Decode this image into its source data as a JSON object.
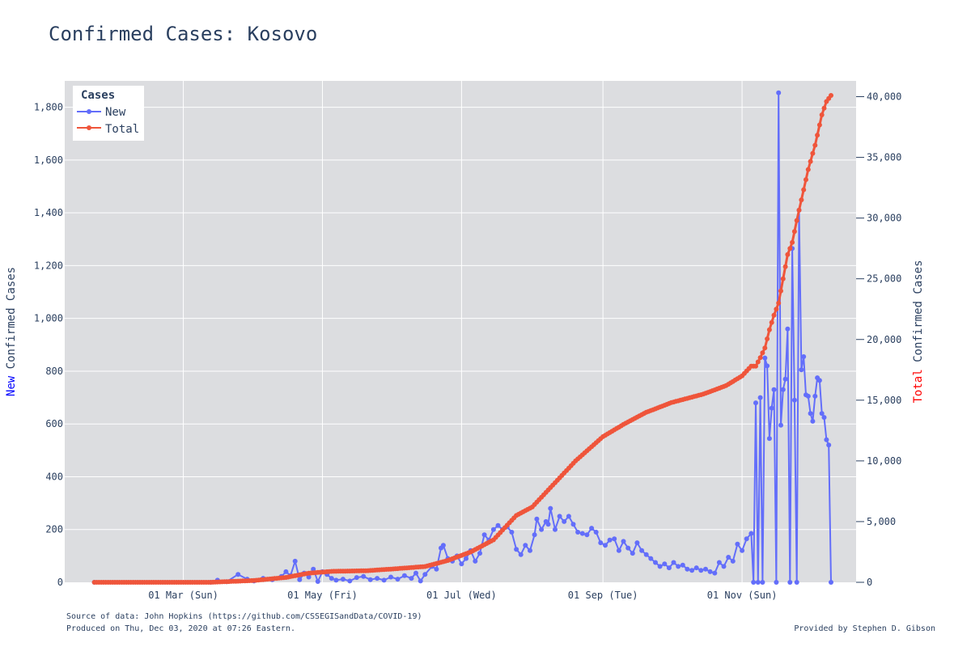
{
  "chart_data": {
    "type": "line",
    "title": "Confirmed Cases: Kosovo",
    "y_left_label": {
      "prefix": "New",
      "rest": " Confirmed Cases"
    },
    "y_right_label": {
      "prefix": "Total",
      "rest": " Confirmed Cases"
    },
    "x_tick_labels": [
      "01 Mar (Sun)",
      "01 May (Fri)",
      "01 Jul (Wed)",
      "01 Sep (Tue)",
      "01 Nov (Sun)"
    ],
    "x_tick_dates": [
      "2020-03-01",
      "2020-05-01",
      "2020-07-01",
      "2020-09-01",
      "2020-11-01"
    ],
    "x_range": [
      "2020-01-09",
      "2020-12-21"
    ],
    "y_left_range": [
      0,
      1900
    ],
    "y_left_ticks": [
      0,
      200,
      400,
      600,
      800,
      1000,
      1200,
      1400,
      1600,
      1800
    ],
    "y_left_tick_labels": [
      "0",
      "200",
      "400",
      "600",
      "800",
      "1,000",
      "1,200",
      "1,400",
      "1,600",
      "1,800"
    ],
    "y_right_range": [
      0,
      41300
    ],
    "y_right_ticks": [
      0,
      5000,
      10000,
      15000,
      20000,
      25000,
      30000,
      35000,
      40000
    ],
    "y_right_tick_labels": [
      "0",
      "5,000",
      "10,000",
      "15,000",
      "20,000",
      "25,000",
      "30,000",
      "35,000",
      "40,000"
    ],
    "legend": {
      "title": "Cases",
      "position": "top-left"
    },
    "grid": true,
    "colors": {
      "new": "#636efa",
      "total": "#ef553b",
      "plot_bg": "#dcdde0",
      "grid": "#ffffff",
      "new_label": "#0000ff",
      "total_label": "#ff0000"
    },
    "series": [
      {
        "name": "New",
        "axis": "left",
        "color": "#636efa",
        "points": [
          [
            "2020-01-22",
            0
          ],
          [
            "2020-03-13",
            0
          ],
          [
            "2020-03-16",
            8
          ],
          [
            "2020-03-20",
            2
          ],
          [
            "2020-03-25",
            30
          ],
          [
            "2020-03-29",
            12
          ],
          [
            "2020-04-01",
            5
          ],
          [
            "2020-04-05",
            15
          ],
          [
            "2020-04-09",
            10
          ],
          [
            "2020-04-13",
            22
          ],
          [
            "2020-04-15",
            40
          ],
          [
            "2020-04-17",
            25
          ],
          [
            "2020-04-19",
            80
          ],
          [
            "2020-04-21",
            10
          ],
          [
            "2020-04-23",
            35
          ],
          [
            "2020-04-25",
            20
          ],
          [
            "2020-04-27",
            50
          ],
          [
            "2020-04-29",
            3
          ],
          [
            "2020-05-01",
            40
          ],
          [
            "2020-05-03",
            30
          ],
          [
            "2020-05-05",
            15
          ],
          [
            "2020-05-07",
            8
          ],
          [
            "2020-05-10",
            12
          ],
          [
            "2020-05-13",
            5
          ],
          [
            "2020-05-16",
            18
          ],
          [
            "2020-05-19",
            22
          ],
          [
            "2020-05-22",
            10
          ],
          [
            "2020-05-25",
            15
          ],
          [
            "2020-05-28",
            8
          ],
          [
            "2020-05-31",
            20
          ],
          [
            "2020-06-03",
            12
          ],
          [
            "2020-06-06",
            25
          ],
          [
            "2020-06-09",
            15
          ],
          [
            "2020-06-11",
            35
          ],
          [
            "2020-06-13",
            5
          ],
          [
            "2020-06-15",
            30
          ],
          [
            "2020-06-18",
            60
          ],
          [
            "2020-06-20",
            50
          ],
          [
            "2020-06-22",
            130
          ],
          [
            "2020-06-23",
            140
          ],
          [
            "2020-06-25",
            90
          ],
          [
            "2020-06-27",
            80
          ],
          [
            "2020-06-29",
            100
          ],
          [
            "2020-07-01",
            70
          ],
          [
            "2020-07-03",
            90
          ],
          [
            "2020-07-05",
            120
          ],
          [
            "2020-07-07",
            80
          ],
          [
            "2020-07-09",
            110
          ],
          [
            "2020-07-11",
            180
          ],
          [
            "2020-07-13",
            160
          ],
          [
            "2020-07-15",
            200
          ],
          [
            "2020-07-17",
            215
          ],
          [
            "2020-07-19",
            200
          ],
          [
            "2020-07-21",
            210
          ],
          [
            "2020-07-23",
            190
          ],
          [
            "2020-07-25",
            125
          ],
          [
            "2020-07-27",
            105
          ],
          [
            "2020-07-29",
            140
          ],
          [
            "2020-07-31",
            120
          ],
          [
            "2020-08-02",
            180
          ],
          [
            "2020-08-03",
            240
          ],
          [
            "2020-08-05",
            200
          ],
          [
            "2020-08-07",
            230
          ],
          [
            "2020-08-08",
            220
          ],
          [
            "2020-08-09",
            280
          ],
          [
            "2020-08-11",
            200
          ],
          [
            "2020-08-13",
            250
          ],
          [
            "2020-08-15",
            230
          ],
          [
            "2020-08-17",
            250
          ],
          [
            "2020-08-19",
            220
          ],
          [
            "2020-08-21",
            190
          ],
          [
            "2020-08-23",
            185
          ],
          [
            "2020-08-25",
            180
          ],
          [
            "2020-08-27",
            205
          ],
          [
            "2020-08-29",
            190
          ],
          [
            "2020-08-31",
            150
          ],
          [
            "2020-09-02",
            140
          ],
          [
            "2020-09-04",
            160
          ],
          [
            "2020-09-06",
            165
          ],
          [
            "2020-09-08",
            120
          ],
          [
            "2020-09-10",
            155
          ],
          [
            "2020-09-12",
            130
          ],
          [
            "2020-09-14",
            110
          ],
          [
            "2020-09-16",
            150
          ],
          [
            "2020-09-18",
            120
          ],
          [
            "2020-09-20",
            105
          ],
          [
            "2020-09-22",
            90
          ],
          [
            "2020-09-24",
            75
          ],
          [
            "2020-09-26",
            60
          ],
          [
            "2020-09-28",
            70
          ],
          [
            "2020-09-30",
            55
          ],
          [
            "2020-10-02",
            75
          ],
          [
            "2020-10-04",
            60
          ],
          [
            "2020-10-06",
            65
          ],
          [
            "2020-10-08",
            50
          ],
          [
            "2020-10-10",
            45
          ],
          [
            "2020-10-12",
            55
          ],
          [
            "2020-10-14",
            45
          ],
          [
            "2020-10-16",
            50
          ],
          [
            "2020-10-18",
            40
          ],
          [
            "2020-10-20",
            35
          ],
          [
            "2020-10-22",
            75
          ],
          [
            "2020-10-24",
            60
          ],
          [
            "2020-10-26",
            95
          ],
          [
            "2020-10-28",
            80
          ],
          [
            "2020-10-30",
            145
          ],
          [
            "2020-11-01",
            120
          ],
          [
            "2020-11-03",
            165
          ],
          [
            "2020-11-05",
            185
          ],
          [
            "2020-11-06",
            0
          ],
          [
            "2020-11-07",
            680
          ],
          [
            "2020-11-08",
            0
          ],
          [
            "2020-11-09",
            700
          ],
          [
            "2020-11-10",
            0
          ],
          [
            "2020-11-11",
            850
          ],
          [
            "2020-11-12",
            820
          ],
          [
            "2020-11-13",
            545
          ],
          [
            "2020-11-14",
            660
          ],
          [
            "2020-11-15",
            730
          ],
          [
            "2020-11-16",
            0
          ],
          [
            "2020-11-17",
            1855
          ],
          [
            "2020-11-18",
            595
          ],
          [
            "2020-11-19",
            730
          ],
          [
            "2020-11-20",
            770
          ],
          [
            "2020-11-21",
            960
          ],
          [
            "2020-11-22",
            0
          ],
          [
            "2020-11-23",
            1265
          ],
          [
            "2020-11-24",
            690
          ],
          [
            "2020-11-25",
            0
          ],
          [
            "2020-11-26",
            1410
          ],
          [
            "2020-11-27",
            805
          ],
          [
            "2020-11-28",
            855
          ],
          [
            "2020-11-29",
            710
          ],
          [
            "2020-11-30",
            705
          ],
          [
            "2020-12-01",
            640
          ],
          [
            "2020-12-02",
            610
          ],
          [
            "2020-12-03",
            705
          ],
          [
            "2020-12-04",
            775
          ],
          [
            "2020-12-05",
            765
          ],
          [
            "2020-12-06",
            640
          ],
          [
            "2020-12-07",
            625
          ],
          [
            "2020-12-08",
            540
          ],
          [
            "2020-12-09",
            520
          ],
          [
            "2020-12-10",
            0
          ]
        ]
      },
      {
        "name": "Total",
        "axis": "right",
        "color": "#ef553b",
        "points": [
          [
            "2020-01-22",
            0
          ],
          [
            "2020-03-13",
            0
          ],
          [
            "2020-04-01",
            150
          ],
          [
            "2020-04-15",
            400
          ],
          [
            "2020-04-25",
            750
          ],
          [
            "2020-05-05",
            900
          ],
          [
            "2020-05-20",
            950
          ],
          [
            "2020-06-01",
            1100
          ],
          [
            "2020-06-15",
            1300
          ],
          [
            "2020-06-25",
            1800
          ],
          [
            "2020-07-05",
            2500
          ],
          [
            "2020-07-15",
            3500
          ],
          [
            "2020-07-20",
            4500
          ],
          [
            "2020-07-25",
            5500
          ],
          [
            "2020-08-01",
            6200
          ],
          [
            "2020-08-10",
            8000
          ],
          [
            "2020-08-20",
            10000
          ],
          [
            "2020-09-01",
            12000
          ],
          [
            "2020-09-10",
            13000
          ],
          [
            "2020-09-20",
            14000
          ],
          [
            "2020-10-01",
            14800
          ],
          [
            "2020-10-15",
            15500
          ],
          [
            "2020-10-25",
            16200
          ],
          [
            "2020-11-01",
            17000
          ],
          [
            "2020-11-05",
            17800
          ],
          [
            "2020-11-07",
            17800
          ],
          [
            "2020-11-09",
            18500
          ],
          [
            "2020-11-11",
            19300
          ],
          [
            "2020-11-13",
            20800
          ],
          [
            "2020-11-15",
            22000
          ],
          [
            "2020-11-17",
            23000
          ],
          [
            "2020-11-19",
            25000
          ],
          [
            "2020-11-21",
            27000
          ],
          [
            "2020-11-23",
            28000
          ],
          [
            "2020-11-25",
            29800
          ],
          [
            "2020-11-27",
            31500
          ],
          [
            "2020-11-30",
            34000
          ],
          [
            "2020-12-03",
            36000
          ],
          [
            "2020-12-06",
            38500
          ],
          [
            "2020-12-08",
            39600
          ],
          [
            "2020-12-10",
            40100
          ]
        ]
      }
    ],
    "source_note": "Source of data: John Hopkins (https://github.com/CSSEGISandData/COVID-19)",
    "produced_note": "Produced on Thu, Dec 03, 2020 at 07:26 Eastern.",
    "credit_note": "Provided by Stephen D. Gibson"
  }
}
